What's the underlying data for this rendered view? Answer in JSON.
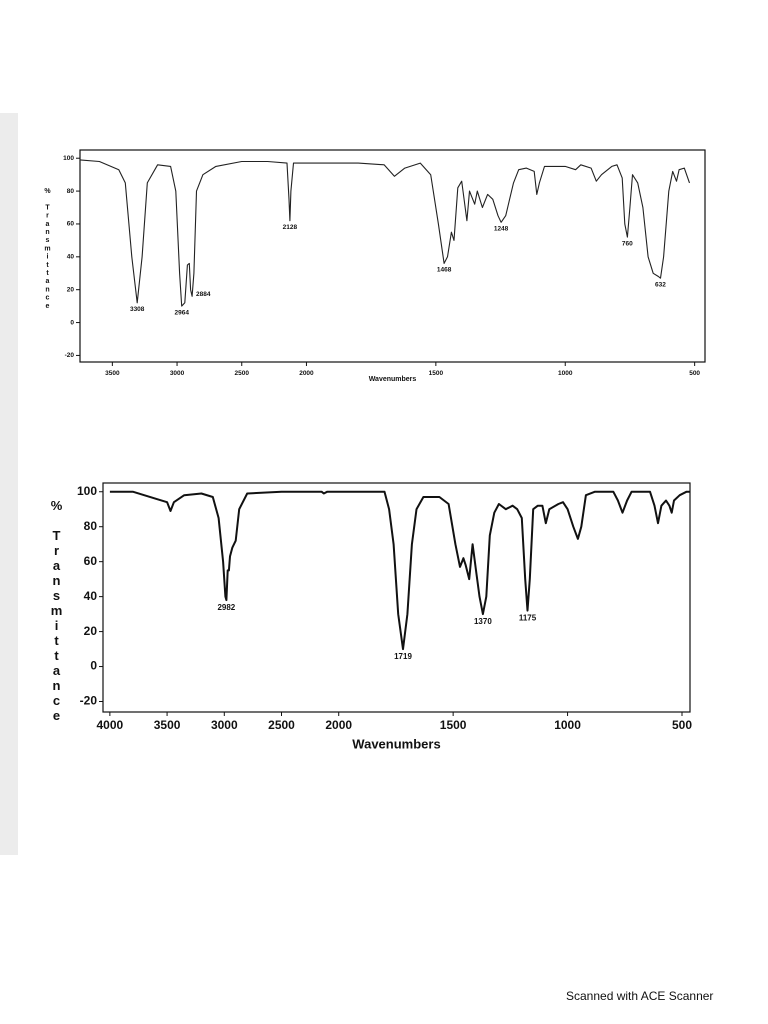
{
  "chart_data": [
    {
      "type": "line",
      "ylabel": "% Transmittance",
      "xlabel": "Wavenumbers",
      "xlim": [
        3750,
        460
      ],
      "ylim": [
        -24,
        105
      ],
      "xbreak": 2000,
      "xbreak_factor": 2,
      "xticks": [
        3500,
        3000,
        2500,
        2000,
        1500,
        1000,
        500
      ],
      "yticks": [
        100,
        80,
        60,
        40,
        20,
        0,
        -20
      ],
      "color": "#222222",
      "x": [
        3750,
        3600,
        3450,
        3400,
        3350,
        3308,
        3270,
        3230,
        3150,
        3050,
        3010,
        2980,
        2964,
        2940,
        2920,
        2905,
        2895,
        2884,
        2870,
        2850,
        2800,
        2700,
        2500,
        2300,
        2150,
        2135,
        2128,
        2120,
        2100,
        2000,
        1800,
        1700,
        1660,
        1620,
        1560,
        1520,
        1490,
        1468,
        1455,
        1440,
        1430,
        1415,
        1400,
        1380,
        1370,
        1350,
        1340,
        1320,
        1300,
        1280,
        1260,
        1248,
        1230,
        1200,
        1180,
        1150,
        1120,
        1110,
        1100,
        1080,
        1000,
        960,
        940,
        900,
        880,
        860,
        820,
        800,
        780,
        770,
        760,
        750,
        740,
        720,
        700,
        680,
        660,
        640,
        632,
        620,
        600,
        585,
        570,
        560,
        540,
        520
      ],
      "values": [
        99,
        98,
        93,
        85,
        40,
        12,
        40,
        85,
        96,
        95,
        80,
        30,
        10,
        12,
        35,
        36,
        20,
        16,
        30,
        80,
        90,
        95,
        98,
        98,
        97,
        75,
        62,
        80,
        97,
        97,
        97,
        96,
        89,
        94,
        97,
        90,
        60,
        36,
        40,
        55,
        50,
        82,
        86,
        62,
        80,
        72,
        80,
        70,
        78,
        75,
        65,
        61,
        65,
        85,
        93,
        94,
        92,
        78,
        85,
        95,
        95,
        93,
        96,
        94,
        86,
        90,
        95,
        96,
        88,
        60,
        52,
        70,
        90,
        85,
        70,
        40,
        30,
        28,
        27,
        40,
        80,
        92,
        86,
        93,
        94,
        85
      ],
      "peak_labels": [
        3308,
        2964,
        2884,
        2128,
        1468,
        1248,
        760,
        632
      ]
    },
    {
      "type": "line",
      "ylabel": "% Transmittance",
      "xlabel": "Wavenumbers",
      "xlim": [
        4060,
        465
      ],
      "ylim": [
        -26,
        105
      ],
      "xbreak": 2000,
      "xbreak_factor": 2,
      "xticks": [
        4000,
        3500,
        3000,
        2500,
        2000,
        1500,
        1000,
        500
      ],
      "yticks": [
        100,
        80,
        60,
        40,
        20,
        0,
        -20
      ],
      "color": "#111111",
      "x": [
        4000,
        3800,
        3700,
        3600,
        3500,
        3470,
        3440,
        3350,
        3200,
        3100,
        3050,
        3010,
        2990,
        2982,
        2970,
        2960,
        2950,
        2930,
        2900,
        2870,
        2800,
        2500,
        2150,
        2130,
        2100,
        1900,
        1800,
        1780,
        1760,
        1740,
        1719,
        1700,
        1680,
        1660,
        1630,
        1560,
        1520,
        1490,
        1470,
        1455,
        1445,
        1430,
        1415,
        1400,
        1385,
        1370,
        1355,
        1340,
        1320,
        1300,
        1270,
        1240,
        1220,
        1200,
        1185,
        1175,
        1165,
        1150,
        1130,
        1110,
        1095,
        1080,
        1040,
        1020,
        1000,
        975,
        955,
        940,
        920,
        880,
        800,
        780,
        760,
        740,
        720,
        640,
        620,
        605,
        590,
        570,
        555,
        545,
        535,
        510,
        480,
        465
      ],
      "values": [
        100,
        100,
        98,
        96,
        94,
        89,
        94,
        98,
        99,
        97,
        85,
        60,
        40,
        38,
        55,
        55,
        63,
        68,
        72,
        90,
        99,
        100,
        100,
        99,
        100,
        100,
        100,
        90,
        70,
        30,
        10,
        30,
        70,
        90,
        97,
        97,
        93,
        70,
        57,
        62,
        58,
        50,
        70,
        55,
        40,
        30,
        40,
        75,
        88,
        93,
        90,
        92,
        90,
        85,
        50,
        32,
        50,
        90,
        92,
        92,
        82,
        90,
        93,
        94,
        90,
        80,
        73,
        80,
        98,
        100,
        100,
        95,
        88,
        95,
        100,
        100,
        92,
        82,
        92,
        95,
        92,
        88,
        95,
        98,
        100,
        100
      ],
      "peak_labels": [
        2982,
        1719,
        1370,
        1175
      ]
    }
  ],
  "footer": "Scanned with ACE Scanner"
}
